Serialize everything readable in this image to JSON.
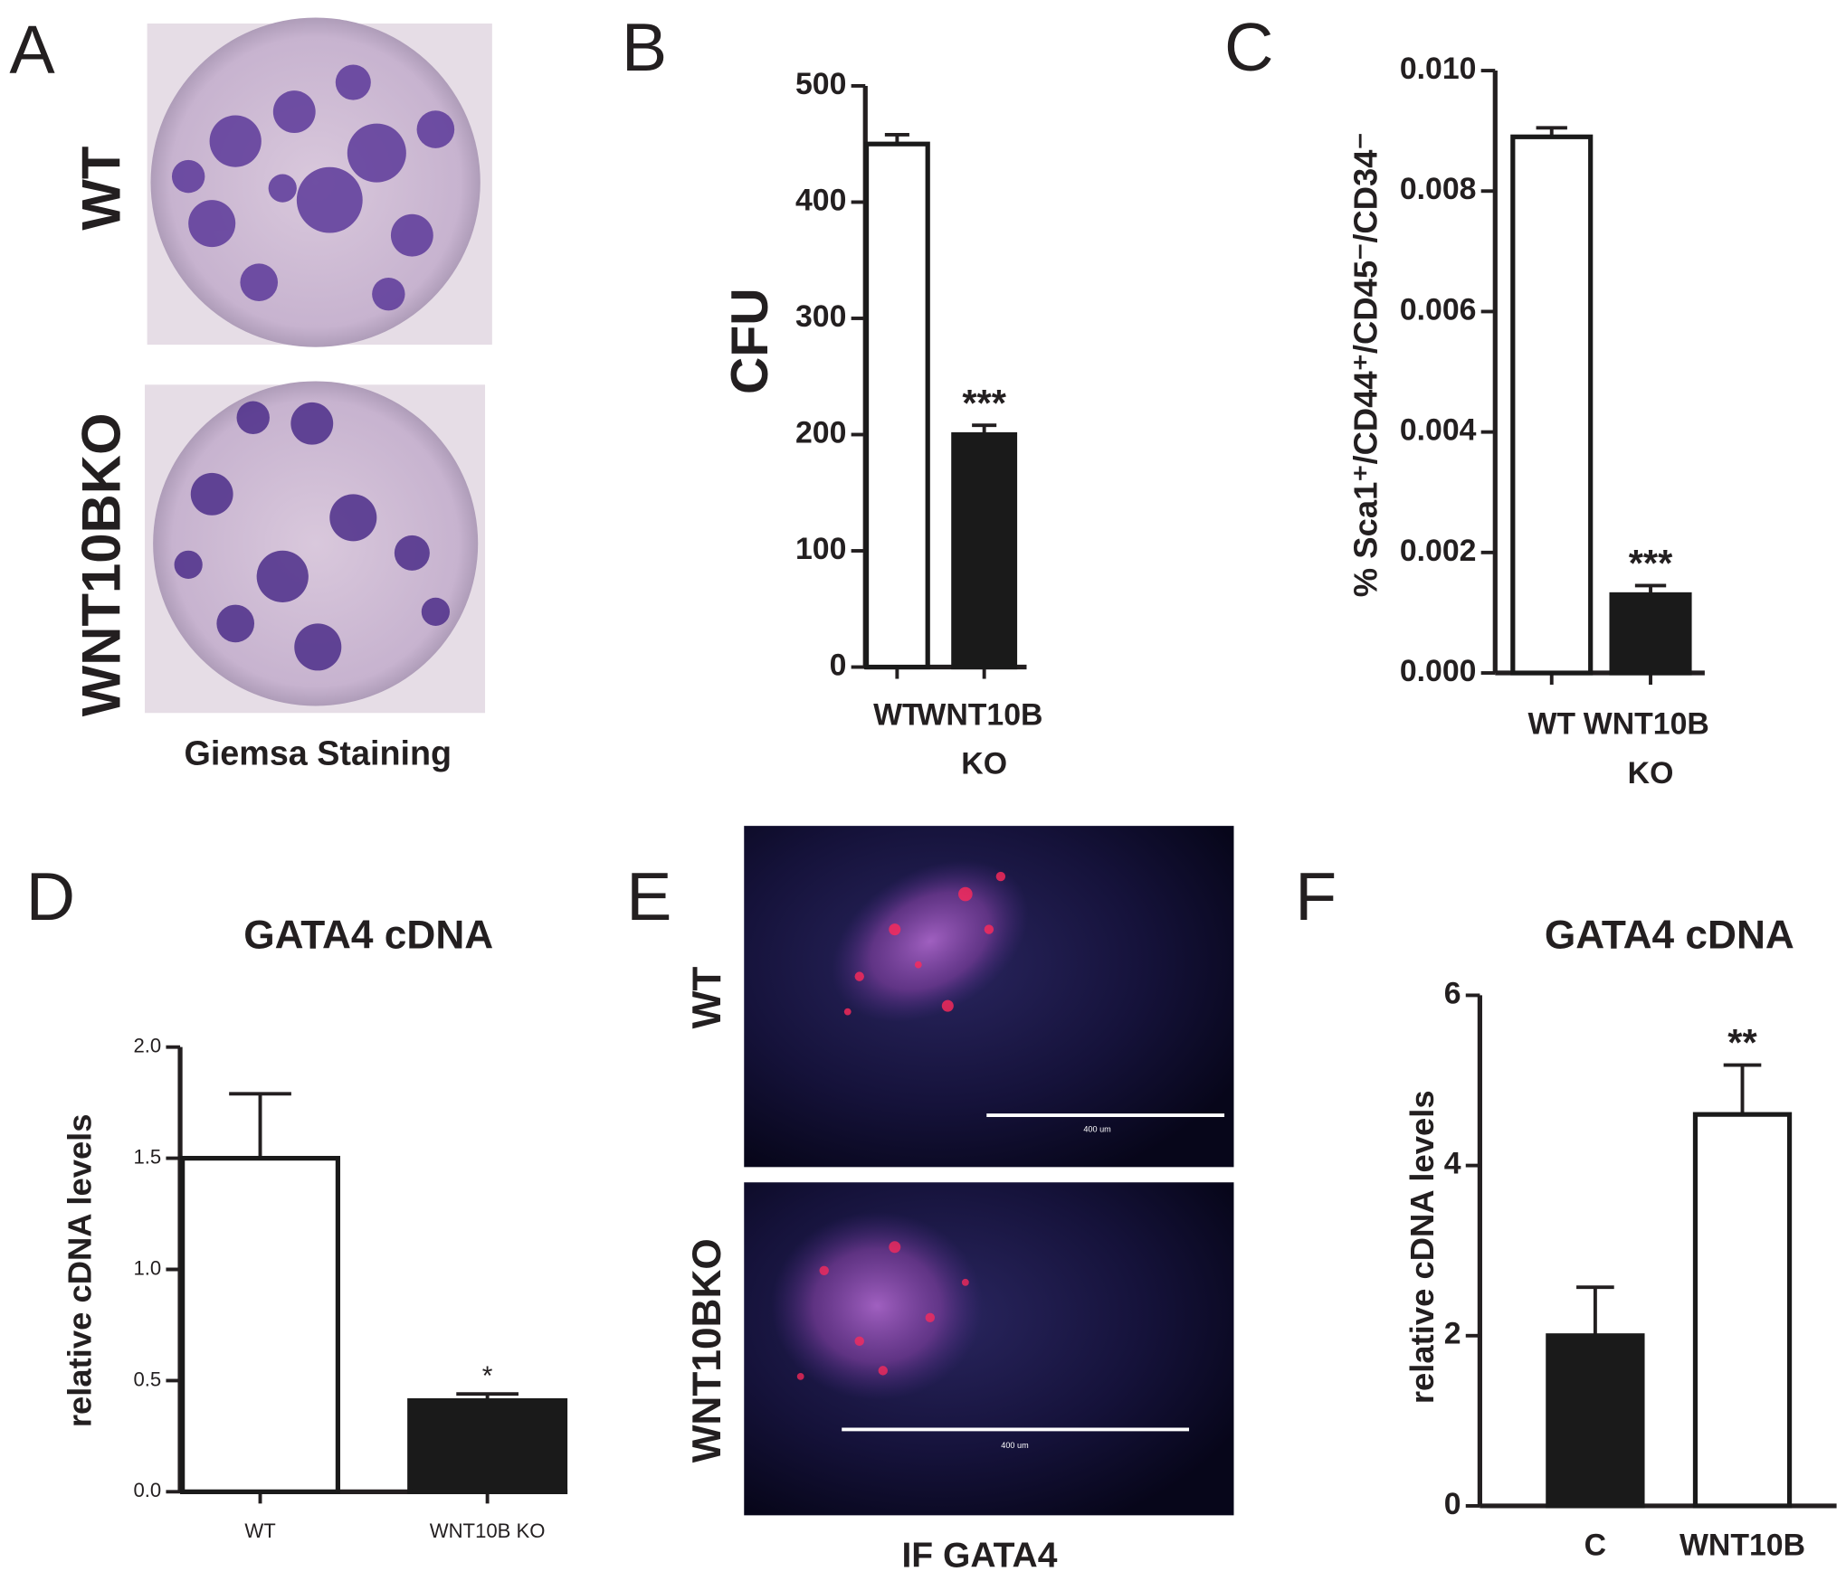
{
  "chart_data": [
    {
      "type": "bar",
      "ylabel": "CFU",
      "categories": [
        "WT",
        "WNT10B KO"
      ],
      "values": [
        450,
        200
      ],
      "errors": [
        8,
        8
      ],
      "colors": [
        "#ffffff",
        "#1a1a1a"
      ],
      "edgecolor": "#1a1a1a",
      "annotations": [
        null,
        "***"
      ],
      "ylim": [
        0,
        500
      ],
      "yticks": [
        0,
        100,
        200,
        300,
        400,
        500
      ]
    },
    {
      "type": "bar",
      "ylabel": "% Sca1⁺/CD44⁺/CD45⁻/CD34⁻",
      "categories": [
        "WT",
        "WNT10B KO"
      ],
      "values": [
        0.0089,
        0.0013
      ],
      "errors": [
        0.00015,
        0.00015
      ],
      "colors": [
        "#ffffff",
        "#1a1a1a"
      ],
      "edgecolor": "#1a1a1a",
      "annotations": [
        null,
        "***"
      ],
      "ylim": [
        0,
        0.01
      ],
      "yticks": [
        {
          "value": 0,
          "label": "0.000"
        },
        {
          "value": 0.002,
          "label": "0.002"
        },
        {
          "value": 0.004,
          "label": "0.004"
        },
        {
          "value": 0.006,
          "label": "0.006"
        },
        {
          "value": 0.008,
          "label": "0.008"
        },
        {
          "value": 0.01,
          "label": "0.010"
        }
      ]
    },
    {
      "type": "bar",
      "title": "GATA4 cDNA",
      "ylabel": "relative cDNA levels",
      "categories": [
        "WT",
        "WNT10B KO"
      ],
      "values": [
        1.5,
        0.41
      ],
      "errors": [
        0.29,
        0.03
      ],
      "colors": [
        "#ffffff",
        "#1a1a1a"
      ],
      "edgecolor": "#1a1a1a",
      "annotations": [
        null,
        "*"
      ],
      "ylim": [
        0,
        2.0
      ],
      "yticks": [
        {
          "value": 0,
          "label": "0.0"
        },
        {
          "value": 0.5,
          "label": "0.5"
        },
        {
          "value": 1.0,
          "label": "1.0"
        },
        {
          "value": 1.5,
          "label": "1.5"
        },
        {
          "value": 2.0,
          "label": "2.0"
        }
      ]
    },
    {
      "type": "bar",
      "title": "GATA4 cDNA",
      "ylabel": "relative cDNA levels",
      "categories": [
        "C",
        "WNT10B"
      ],
      "values": [
        2.0,
        4.6
      ],
      "errors": [
        0.57,
        0.58
      ],
      "colors": [
        "#1a1a1a",
        "#ffffff"
      ],
      "edgecolor": "#1a1a1a",
      "annotations": [
        null,
        "**"
      ],
      "ylim": [
        0,
        6
      ],
      "yticks": [
        0,
        2,
        4,
        6
      ]
    }
  ],
  "figure": {
    "panels": [
      "A",
      "B",
      "C",
      "D",
      "E",
      "F"
    ],
    "panel_a": {
      "top_label": "WT",
      "bottom_label": "WNT10BKO",
      "caption": "Giemsa Staining"
    },
    "panel_e": {
      "top_label": "WT",
      "bottom_label": "WNT10BKO",
      "caption": "IF GATA4",
      "scale_bar": "400 um"
    }
  }
}
